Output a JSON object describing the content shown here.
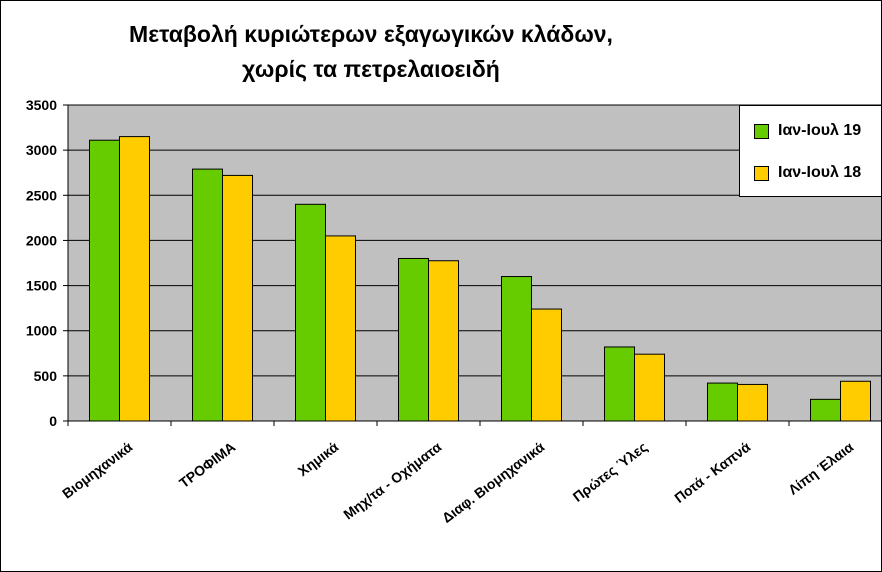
{
  "title_line1": "Μεταβολή κυριώτερων εξαγωγικών κλάδων,",
  "title_line2": "χωρίς τα πετρελαιοειδή",
  "colors": {
    "plot_background": "#c0c0c0",
    "series_1": "#66cc00",
    "series_2": "#ffcc00"
  },
  "chart_data": {
    "type": "bar",
    "title": "Μεταβολή κυριώτερων εξαγωγικών κλάδων, χωρίς τα πετρελαιοειδή",
    "categories": [
      "Βιομηχανικά",
      "ΤΡΟΦΙΜΑ",
      "Χημικά",
      "Μηχ/τα - Οχήματα",
      "Διαφ. Βιομηχανικά",
      "Πρώτες Ύλες",
      "Ποτά - Καπνά",
      "Λίπη Έλαια"
    ],
    "series": [
      {
        "name": "Ιαν-Ιουλ 19",
        "values": [
          3110,
          2790,
          2400,
          1800,
          1600,
          820,
          420,
          240
        ]
      },
      {
        "name": "Ιαν-Ιουλ 18",
        "values": [
          3150,
          2720,
          2050,
          1775,
          1240,
          740,
          405,
          440
        ]
      }
    ],
    "ylim": [
      0,
      3500
    ],
    "yticks": [
      "0",
      "500",
      "1000",
      "1500",
      "2000",
      "2500",
      "3000",
      "3500"
    ],
    "grid": true,
    "legend_position": "top-right"
  }
}
